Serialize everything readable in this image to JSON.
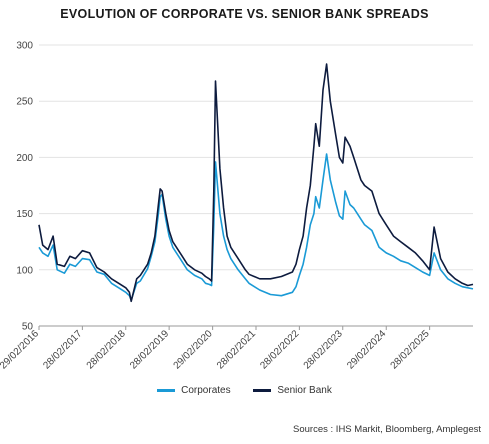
{
  "chart_data": {
    "type": "line",
    "title": "EVOLUTION OF CORPORATE VS. SENIOR BANK SPREADS",
    "xlabel": "",
    "ylabel": "",
    "ylim": [
      50,
      300
    ],
    "y_ticks": [
      50,
      100,
      150,
      200,
      250,
      300
    ],
    "x_range": [
      "2016-02-29",
      "2026-02-28"
    ],
    "x_tick_labels": [
      "29/02/2016",
      "28/02/2017",
      "28/02/2018",
      "28/02/2019",
      "29/02/2020",
      "28/02/2021",
      "28/02/2022",
      "28/02/2023",
      "29/02/2024",
      "28/02/2025"
    ],
    "grid": {
      "horizontal": true,
      "vertical": false,
      "color": "#e3e3e3"
    },
    "legend": {
      "position": "bottom-center"
    },
    "series": [
      {
        "name": "Corporates",
        "color": "#1a9ad6",
        "points": [
          [
            "2016-02-29",
            120
          ],
          [
            "2016-03-31",
            115
          ],
          [
            "2016-05-15",
            112
          ],
          [
            "2016-06-27",
            122
          ],
          [
            "2016-07-31",
            100
          ],
          [
            "2016-09-30",
            97
          ],
          [
            "2016-11-15",
            105
          ],
          [
            "2016-12-31",
            103
          ],
          [
            "2017-02-28",
            110
          ],
          [
            "2017-04-30",
            109
          ],
          [
            "2017-06-30",
            98
          ],
          [
            "2017-08-31",
            96
          ],
          [
            "2017-10-31",
            88
          ],
          [
            "2017-12-31",
            84
          ],
          [
            "2018-02-28",
            80
          ],
          [
            "2018-03-31",
            77
          ],
          [
            "2018-04-15",
            73
          ],
          [
            "2018-05-31",
            88
          ],
          [
            "2018-06-30",
            90
          ],
          [
            "2018-08-31",
            101
          ],
          [
            "2018-09-30",
            112
          ],
          [
            "2018-10-31",
            125
          ],
          [
            "2018-11-30",
            150
          ],
          [
            "2018-12-15",
            165
          ],
          [
            "2018-12-31",
            167
          ],
          [
            "2019-01-31",
            145
          ],
          [
            "2019-02-28",
            130
          ],
          [
            "2019-03-31",
            120
          ],
          [
            "2019-05-31",
            110
          ],
          [
            "2019-07-31",
            100
          ],
          [
            "2019-09-30",
            95
          ],
          [
            "2019-11-30",
            92
          ],
          [
            "2019-12-31",
            88
          ],
          [
            "2020-01-31",
            87
          ],
          [
            "2020-02-20",
            86
          ],
          [
            "2020-03-10",
            140
          ],
          [
            "2020-03-24",
            196
          ],
          [
            "2020-04-30",
            150
          ],
          [
            "2020-05-31",
            130
          ],
          [
            "2020-06-30",
            118
          ],
          [
            "2020-07-31",
            110
          ],
          [
            "2020-09-30",
            100
          ],
          [
            "2020-11-30",
            92
          ],
          [
            "2020-12-31",
            88
          ],
          [
            "2021-03-31",
            82
          ],
          [
            "2021-06-30",
            78
          ],
          [
            "2021-09-30",
            77
          ],
          [
            "2021-12-31",
            80
          ],
          [
            "2022-01-31",
            85
          ],
          [
            "2022-02-28",
            95
          ],
          [
            "2022-03-31",
            105
          ],
          [
            "2022-04-30",
            120
          ],
          [
            "2022-05-31",
            140
          ],
          [
            "2022-06-30",
            150
          ],
          [
            "2022-07-15",
            165
          ],
          [
            "2022-08-15",
            155
          ],
          [
            "2022-09-15",
            180
          ],
          [
            "2022-10-15",
            203
          ],
          [
            "2022-11-15",
            180
          ],
          [
            "2022-12-31",
            160
          ],
          [
            "2023-01-31",
            148
          ],
          [
            "2023-02-28",
            145
          ],
          [
            "2023-03-20",
            170
          ],
          [
            "2023-04-30",
            158
          ],
          [
            "2023-05-31",
            155
          ],
          [
            "2023-06-30",
            150
          ],
          [
            "2023-07-31",
            145
          ],
          [
            "2023-08-31",
            140
          ],
          [
            "2023-10-31",
            135
          ],
          [
            "2023-12-31",
            120
          ],
          [
            "2024-02-29",
            115
          ],
          [
            "2024-04-30",
            112
          ],
          [
            "2024-06-30",
            108
          ],
          [
            "2024-08-31",
            106
          ],
          [
            "2024-10-31",
            102
          ],
          [
            "2024-12-31",
            98
          ],
          [
            "2025-02-28",
            95
          ],
          [
            "2025-04-07",
            115
          ],
          [
            "2025-05-31",
            100
          ],
          [
            "2025-07-31",
            92
          ],
          [
            "2025-09-30",
            88
          ],
          [
            "2025-11-30",
            85
          ],
          [
            "2026-01-15",
            84
          ],
          [
            "2026-02-28",
            83
          ]
        ]
      },
      {
        "name": "Senior Bank",
        "color": "#0d1b3e",
        "points": [
          [
            "2016-02-29",
            140
          ],
          [
            "2016-03-31",
            122
          ],
          [
            "2016-05-15",
            118
          ],
          [
            "2016-06-27",
            130
          ],
          [
            "2016-07-31",
            105
          ],
          [
            "2016-09-30",
            103
          ],
          [
            "2016-11-15",
            112
          ],
          [
            "2016-12-31",
            110
          ],
          [
            "2017-02-28",
            117
          ],
          [
            "2017-04-30",
            115
          ],
          [
            "2017-06-30",
            102
          ],
          [
            "2017-08-31",
            98
          ],
          [
            "2017-10-31",
            92
          ],
          [
            "2017-12-31",
            88
          ],
          [
            "2018-02-28",
            84
          ],
          [
            "2018-03-31",
            80
          ],
          [
            "2018-04-15",
            72
          ],
          [
            "2018-05-31",
            92
          ],
          [
            "2018-06-30",
            95
          ],
          [
            "2018-08-31",
            105
          ],
          [
            "2018-09-30",
            115
          ],
          [
            "2018-10-31",
            130
          ],
          [
            "2018-11-30",
            158
          ],
          [
            "2018-12-15",
            172
          ],
          [
            "2018-12-31",
            170
          ],
          [
            "2019-01-31",
            150
          ],
          [
            "2019-02-28",
            135
          ],
          [
            "2019-03-31",
            125
          ],
          [
            "2019-05-31",
            115
          ],
          [
            "2019-07-31",
            105
          ],
          [
            "2019-09-30",
            100
          ],
          [
            "2019-11-30",
            97
          ],
          [
            "2019-12-31",
            94
          ],
          [
            "2020-01-31",
            92
          ],
          [
            "2020-02-20",
            90
          ],
          [
            "2020-03-10",
            170
          ],
          [
            "2020-03-24",
            268
          ],
          [
            "2020-04-30",
            190
          ],
          [
            "2020-05-31",
            155
          ],
          [
            "2020-06-30",
            130
          ],
          [
            "2020-07-31",
            120
          ],
          [
            "2020-09-30",
            110
          ],
          [
            "2020-11-30",
            100
          ],
          [
            "2020-12-31",
            96
          ],
          [
            "2021-03-31",
            92
          ],
          [
            "2021-06-30",
            92
          ],
          [
            "2021-09-30",
            94
          ],
          [
            "2021-12-31",
            98
          ],
          [
            "2022-01-31",
            105
          ],
          [
            "2022-02-28",
            118
          ],
          [
            "2022-03-31",
            130
          ],
          [
            "2022-04-30",
            155
          ],
          [
            "2022-05-31",
            175
          ],
          [
            "2022-06-30",
            210
          ],
          [
            "2022-07-15",
            230
          ],
          [
            "2022-08-15",
            210
          ],
          [
            "2022-09-15",
            260
          ],
          [
            "2022-10-15",
            283
          ],
          [
            "2022-11-15",
            250
          ],
          [
            "2022-12-31",
            220
          ],
          [
            "2023-01-31",
            200
          ],
          [
            "2023-02-28",
            195
          ],
          [
            "2023-03-20",
            218
          ],
          [
            "2023-04-30",
            210
          ],
          [
            "2023-05-31",
            200
          ],
          [
            "2023-06-30",
            190
          ],
          [
            "2023-07-31",
            180
          ],
          [
            "2023-08-31",
            175
          ],
          [
            "2023-10-31",
            170
          ],
          [
            "2023-12-31",
            150
          ],
          [
            "2024-02-29",
            140
          ],
          [
            "2024-04-30",
            130
          ],
          [
            "2024-06-30",
            125
          ],
          [
            "2024-08-31",
            120
          ],
          [
            "2024-10-31",
            115
          ],
          [
            "2024-12-31",
            108
          ],
          [
            "2025-02-28",
            100
          ],
          [
            "2025-04-07",
            138
          ],
          [
            "2025-05-31",
            110
          ],
          [
            "2025-07-31",
            98
          ],
          [
            "2025-09-30",
            92
          ],
          [
            "2025-11-30",
            88
          ],
          [
            "2026-01-15",
            86
          ],
          [
            "2026-02-28",
            87
          ]
        ]
      }
    ]
  },
  "legend_items": [
    {
      "label": "Corporates",
      "color": "#1a9ad6"
    },
    {
      "label": "Senior Bank",
      "color": "#0d1b3e"
    }
  ],
  "source": "Sources : IHS Markit, Bloomberg, Amplegest"
}
